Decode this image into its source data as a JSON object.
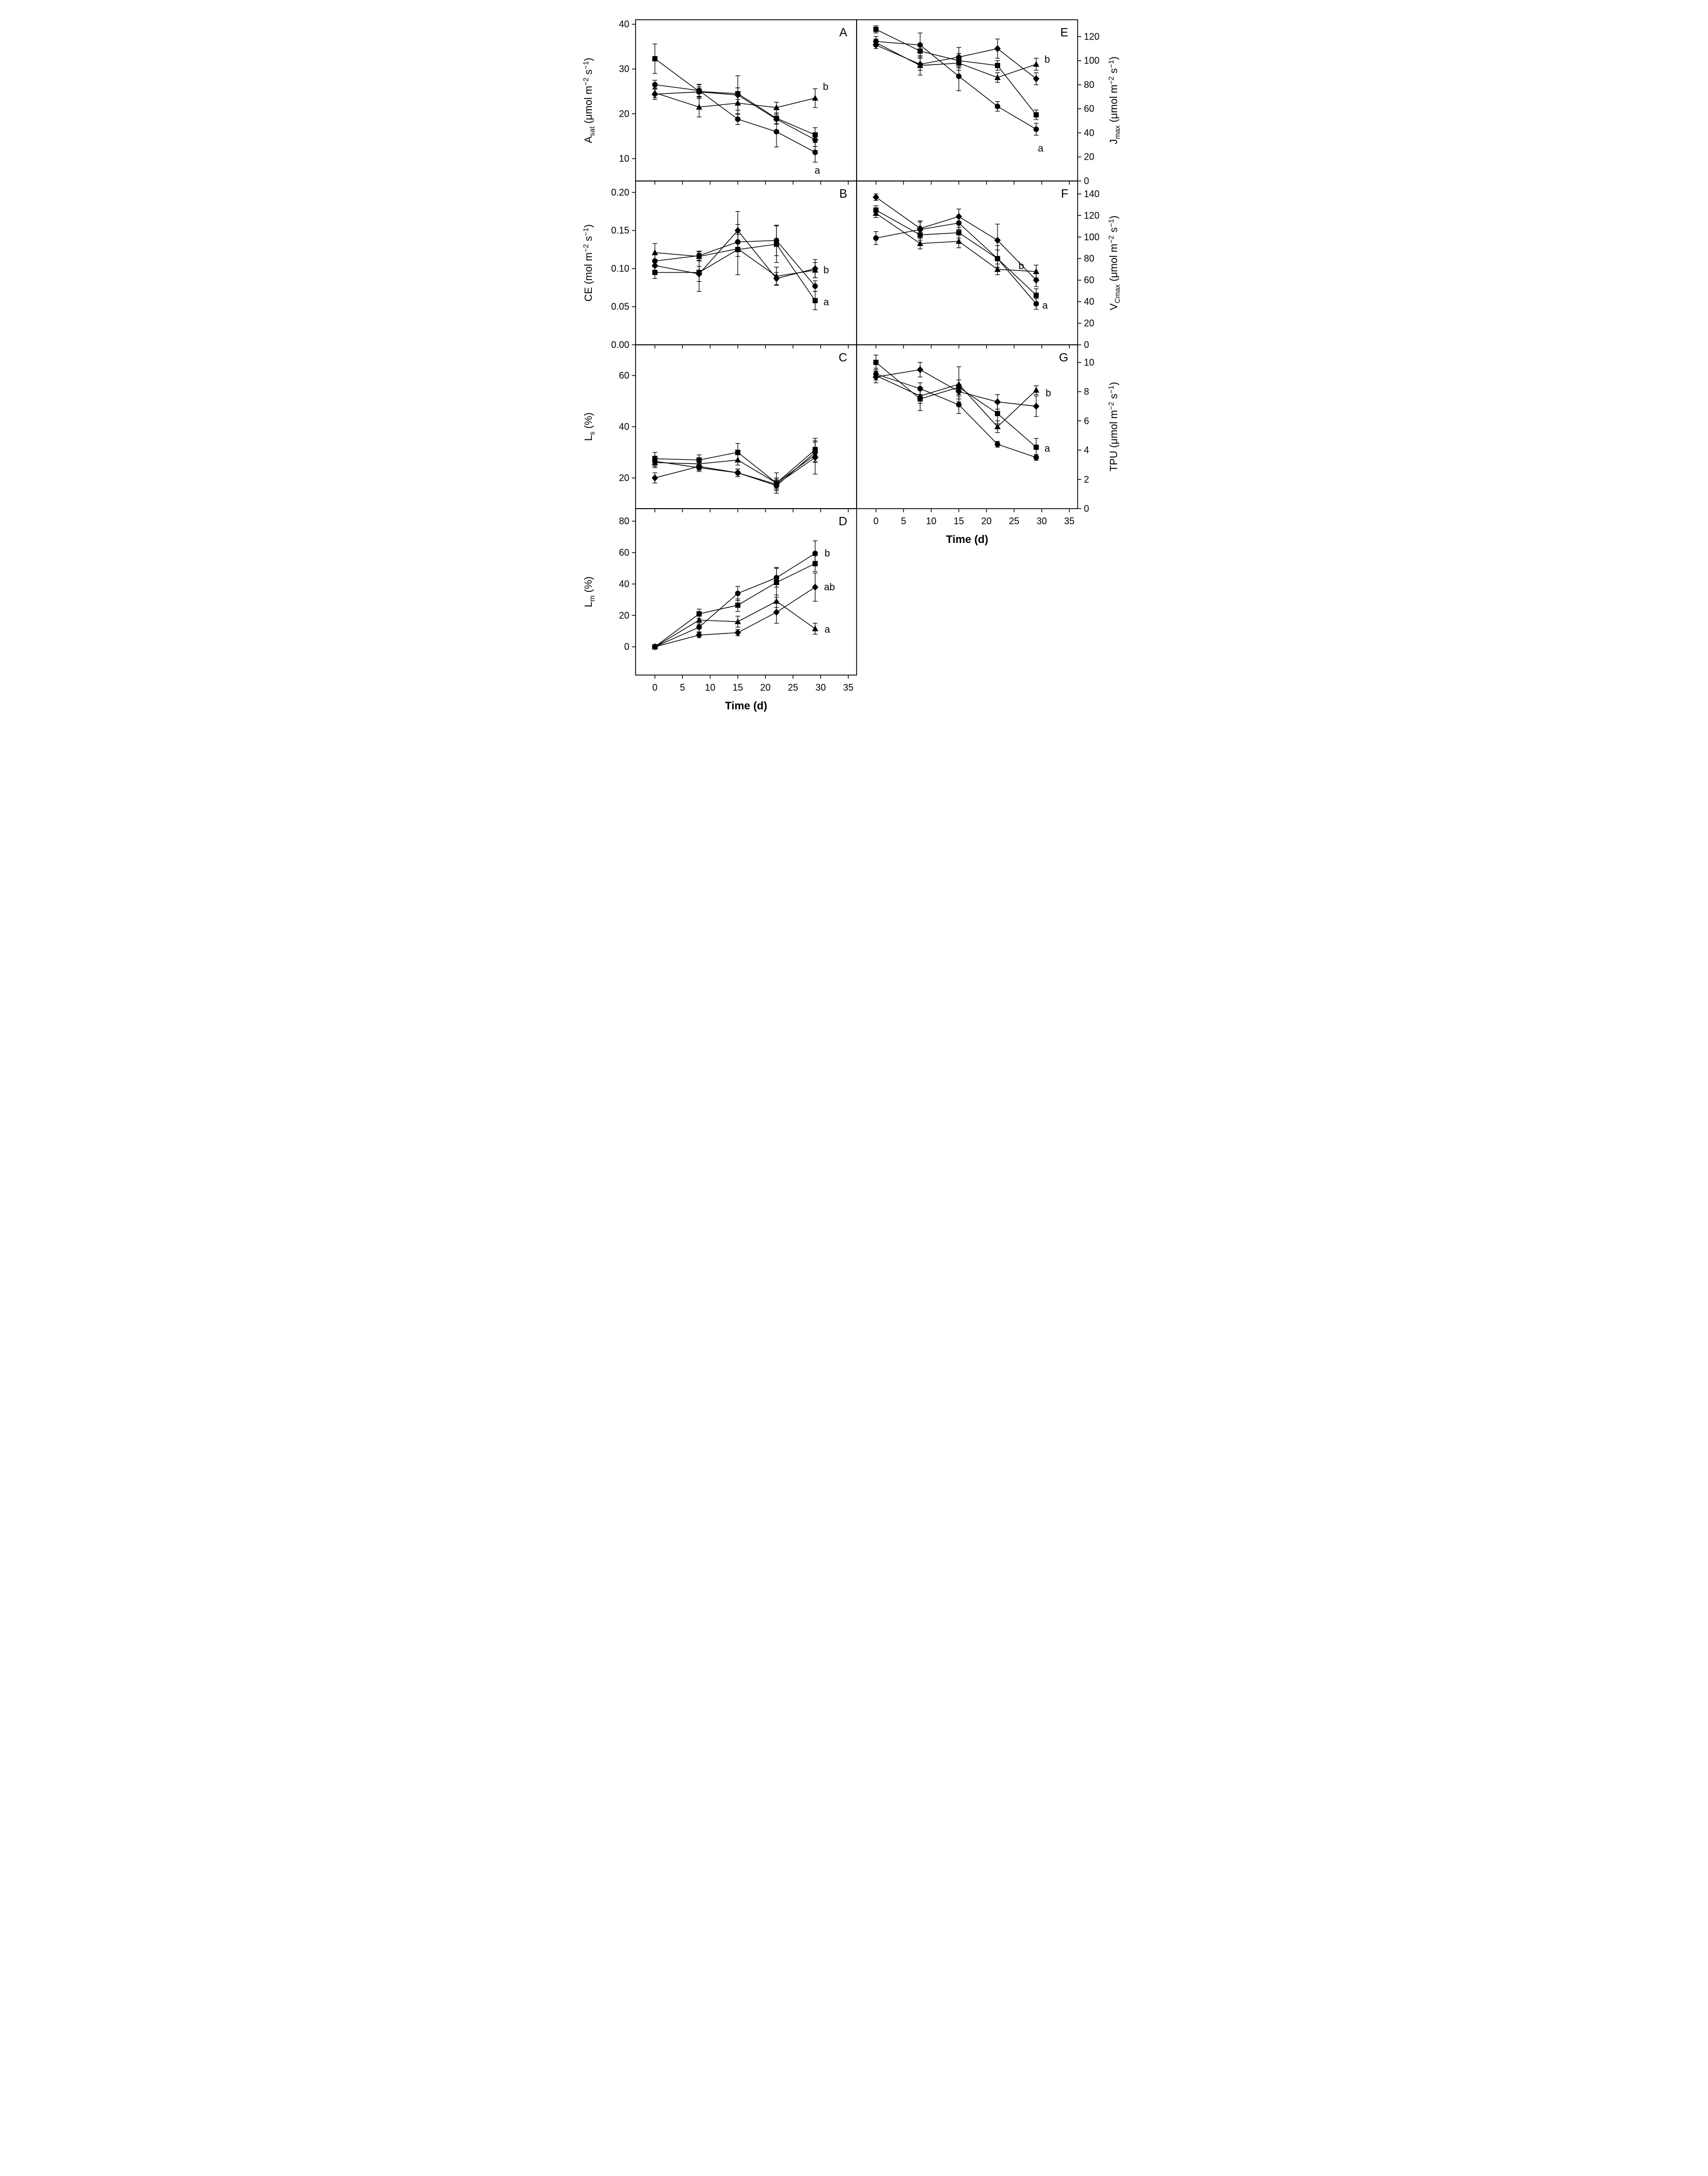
{
  "figure": {
    "xlabel": "Time (d)",
    "xlim": [
      -3.5,
      36.5
    ],
    "x_values": [
      0,
      8,
      15,
      22,
      29
    ],
    "x_ticks": [
      0,
      5,
      10,
      15,
      20,
      25,
      30,
      35
    ],
    "x_tick_labels": [
      "0",
      "5",
      "10",
      "15",
      "20",
      "25",
      "30",
      "35"
    ],
    "marker_color": "#000000",
    "axis_color": "#000000",
    "background": "#ffffff"
  },
  "chart_data": [
    {
      "panel": "A",
      "type": "line",
      "ylabel": [
        {
          "t": "A"
        },
        {
          "t": "sat",
          "v": "sub"
        },
        {
          "t": " (μmol m"
        },
        {
          "t": "−2",
          "v": "sup"
        },
        {
          "t": " s"
        },
        {
          "t": "−1",
          "v": "sup"
        },
        {
          "t": ")"
        }
      ],
      "ylim": [
        5,
        41
      ],
      "yticks": [
        10,
        20,
        30,
        40
      ],
      "ytick_labels": [
        "10",
        "20",
        "30",
        "40"
      ],
      "series": [
        {
          "marker": "square",
          "values": [
            32.3,
            25.0,
            24.5,
            19.0,
            15.3
          ],
          "errors": [
            3.3,
            1.6,
            1.3,
            1.2,
            1.6
          ]
        },
        {
          "marker": "circle",
          "values": [
            26.5,
            25.2,
            18.8,
            16.0,
            11.4
          ],
          "errors": [
            1.0,
            1.3,
            1.2,
            3.4,
            2.2
          ]
        },
        {
          "marker": "triangle",
          "values": [
            24.7,
            21.5,
            22.4,
            21.4,
            23.5
          ],
          "errors": [
            1.1,
            2.2,
            1.6,
            1.2,
            2.1
          ]
        },
        {
          "marker": "diamond",
          "values": [
            24.4,
            24.9,
            24.2,
            18.8,
            14.2
          ],
          "errors": [
            1.2,
            1.1,
            4.3,
            1.1,
            1.5
          ]
        }
      ],
      "annotations": [
        {
          "text": "b",
          "x": 30.9,
          "y": 26.0
        },
        {
          "text": "a",
          "x": 29.4,
          "y": 7.3
        }
      ]
    },
    {
      "panel": "B",
      "type": "line",
      "ylabel": [
        {
          "t": "CE (mol m"
        },
        {
          "t": "−2",
          "v": "sup"
        },
        {
          "t": " s"
        },
        {
          "t": "−1",
          "v": "sup"
        },
        {
          "t": ")"
        }
      ],
      "ylim": [
        0,
        0.215
      ],
      "yticks": [
        0,
        0.05,
        0.1,
        0.15,
        0.2
      ],
      "ytick_labels": [
        "0.00",
        "0.05",
        "0.10",
        "0.15",
        "0.20"
      ],
      "series": [
        {
          "marker": "square",
          "values": [
            0.095,
            0.095,
            0.125,
            0.132,
            0.058
          ],
          "errors": [
            0.008,
            0.025,
            0.033,
            0.024,
            0.012
          ]
        },
        {
          "marker": "circle",
          "values": [
            0.11,
            0.117,
            0.135,
            0.137,
            0.077
          ],
          "errors": [
            0.008,
            0.006,
            0.01,
            0.02,
            0.007
          ]
        },
        {
          "marker": "triangle",
          "values": [
            0.121,
            0.116,
            0.126,
            0.09,
            0.098
          ],
          "errors": [
            0.012,
            0.006,
            0.01,
            0.012,
            0.01
          ]
        },
        {
          "marker": "diamond",
          "values": [
            0.104,
            0.093,
            0.15,
            0.087,
            0.1
          ],
          "errors": [
            0.008,
            0.01,
            0.025,
            0.008,
            0.012
          ]
        }
      ],
      "annotations": [
        {
          "text": "b",
          "x": 31.0,
          "y": 0.098
        },
        {
          "text": "a",
          "x": 31.0,
          "y": 0.056
        }
      ]
    },
    {
      "panel": "C",
      "type": "line",
      "ylabel": [
        {
          "t": "L"
        },
        {
          "t": "s",
          "v": "sub"
        },
        {
          "t": " (%)"
        }
      ],
      "ylim": [
        8,
        72
      ],
      "yticks": [
        20,
        40,
        60
      ],
      "ytick_labels": [
        "20",
        "40",
        "60"
      ],
      "series": [
        {
          "marker": "square",
          "values": [
            27.5,
            27.0,
            30.0,
            18.0,
            31.0
          ],
          "errors": [
            2.5,
            2.0,
            3.5,
            2.0,
            4.5
          ]
        },
        {
          "marker": "circle",
          "values": [
            26.5,
            24.0,
            22.0,
            17.0,
            30.0
          ],
          "errors": [
            2.0,
            1.5,
            1.5,
            2.0,
            4.0
          ]
        },
        {
          "marker": "triangle",
          "values": [
            26.0,
            25.5,
            27.0,
            18.0,
            29.0
          ],
          "errors": [
            2.0,
            1.5,
            2.0,
            4.0,
            3.0
          ]
        },
        {
          "marker": "diamond",
          "values": [
            20.0,
            24.5,
            22.0,
            17.5,
            28.0
          ],
          "errors": [
            2.0,
            1.5,
            1.5,
            2.0,
            6.5
          ]
        }
      ],
      "annotations": []
    },
    {
      "panel": "D",
      "type": "line",
      "ylabel": [
        {
          "t": "L"
        },
        {
          "t": "m",
          "v": "sub"
        },
        {
          "t": " (%)"
        }
      ],
      "ylim": [
        -18,
        88
      ],
      "yticks": [
        0,
        20,
        40,
        60,
        80
      ],
      "ytick_labels": [
        "0",
        "20",
        "40",
        "60",
        "80"
      ],
      "series": [
        {
          "marker": "square",
          "values": [
            0,
            21.0,
            26.5,
            41.0,
            53.0
          ],
          "errors": [
            0.5,
            3.0,
            4.0,
            9.5,
            5.0
          ]
        },
        {
          "marker": "circle",
          "values": [
            0,
            12.5,
            34.0,
            44.0,
            59.5
          ],
          "errors": [
            0.5,
            3.0,
            4.5,
            6.0,
            8.0
          ]
        },
        {
          "marker": "triangle",
          "values": [
            0,
            17.0,
            16.0,
            29.0,
            11.5
          ],
          "errors": [
            0.5,
            2.5,
            3.5,
            4.0,
            3.5
          ]
        },
        {
          "marker": "diamond",
          "values": [
            0,
            7.5,
            9.0,
            22.0,
            38.0
          ],
          "errors": [
            0.5,
            1.5,
            2.0,
            7.0,
            9.0
          ]
        }
      ],
      "annotations": [
        {
          "text": "b",
          "x": 31.2,
          "y": 59.5
        },
        {
          "text": "ab",
          "x": 31.6,
          "y": 38.0
        },
        {
          "text": "a",
          "x": 31.2,
          "y": 11.0
        }
      ]
    },
    {
      "panel": "E",
      "type": "line",
      "ylabel": [
        {
          "t": "J"
        },
        {
          "t": "max",
          "v": "sub"
        },
        {
          "t": " (μmol m"
        },
        {
          "t": "−2",
          "v": "sup"
        },
        {
          "t": " s"
        },
        {
          "t": "−1",
          "v": "sup"
        },
        {
          "t": ")"
        }
      ],
      "ylim": [
        0,
        134
      ],
      "yticks": [
        0,
        20,
        40,
        60,
        80,
        100,
        120
      ],
      "ytick_labels": [
        "0",
        "20",
        "40",
        "60",
        "80",
        "100",
        "120"
      ],
      "series": [
        {
          "marker": "square",
          "values": [
            126,
            108,
            100,
            96,
            55
          ],
          "errors": [
            3,
            4,
            6,
            4,
            4
          ]
        },
        {
          "marker": "circle",
          "values": [
            116,
            113,
            87,
            62,
            43
          ],
          "errors": [
            4,
            10,
            12,
            4,
            5
          ]
        },
        {
          "marker": "triangle",
          "values": [
            115,
            96,
            98,
            86,
            97
          ],
          "errors": [
            3,
            8,
            6,
            4,
            5
          ]
        },
        {
          "marker": "diamond",
          "values": [
            113,
            97,
            103,
            110,
            85
          ],
          "errors": [
            3,
            5,
            8,
            8,
            5
          ]
        }
      ],
      "annotations": [
        {
          "text": "b",
          "x": 31.0,
          "y": 101.0
        },
        {
          "text": "a",
          "x": 29.8,
          "y": 27.0
        }
      ]
    },
    {
      "panel": "F",
      "type": "line",
      "ylabel": [
        {
          "t": "V"
        },
        {
          "t": "Cmax",
          "v": "sub"
        },
        {
          "t": " (μmol m"
        },
        {
          "t": "−2",
          "v": "sup"
        },
        {
          "t": " s"
        },
        {
          "t": "−1",
          "v": "sup"
        },
        {
          "t": ")"
        }
      ],
      "ylim": [
        0,
        152
      ],
      "yticks": [
        0,
        20,
        40,
        60,
        80,
        100,
        120,
        140
      ],
      "ytick_labels": [
        "0",
        "20",
        "40",
        "60",
        "80",
        "100",
        "120",
        "140"
      ],
      "series": [
        {
          "marker": "square",
          "values": [
            125,
            102,
            104,
            80,
            46
          ],
          "errors": [
            4,
            5,
            5,
            8,
            6
          ]
        },
        {
          "marker": "circle",
          "values": [
            99,
            107,
            113,
            80,
            38
          ],
          "errors": [
            6,
            8,
            6,
            12,
            5
          ]
        },
        {
          "marker": "triangle",
          "values": [
            122,
            94,
            96,
            70,
            68
          ],
          "errors": [
            4,
            5,
            6,
            5,
            6
          ]
        },
        {
          "marker": "diamond",
          "values": [
            137,
            108,
            119,
            97,
            60
          ],
          "errors": [
            3,
            6,
            7,
            15,
            6
          ]
        }
      ],
      "annotations": [
        {
          "text": "b",
          "x": 26.3,
          "y": 73.0
        },
        {
          "text": "a",
          "x": 30.6,
          "y": 36.5
        }
      ]
    },
    {
      "panel": "G",
      "type": "line",
      "ylabel": [
        {
          "t": "TPU (μmol m"
        },
        {
          "t": "−2",
          "v": "sup"
        },
        {
          "t": " s"
        },
        {
          "t": "−1",
          "v": "sup"
        },
        {
          "t": ")"
        }
      ],
      "ylim": [
        0,
        11.2
      ],
      "yticks": [
        0,
        2,
        4,
        6,
        8,
        10
      ],
      "ytick_labels": [
        "0",
        "2",
        "4",
        "6",
        "8",
        "10"
      ],
      "series": [
        {
          "marker": "square",
          "values": [
            10.0,
            7.5,
            8.3,
            6.5,
            4.2
          ],
          "errors": [
            0.5,
            0.8,
            0.5,
            0.7,
            0.6
          ]
        },
        {
          "marker": "circle",
          "values": [
            9.2,
            8.2,
            7.1,
            4.4,
            3.5
          ],
          "errors": [
            0.4,
            0.4,
            0.6,
            0.2,
            0.2
          ]
        },
        {
          "marker": "triangle",
          "values": [
            9.1,
            7.7,
            8.5,
            5.6,
            8.1
          ],
          "errors": [
            0.3,
            0.5,
            1.2,
            0.4,
            0.3
          ]
        },
        {
          "marker": "diamond",
          "values": [
            9.0,
            9.5,
            8.0,
            7.3,
            7.0
          ],
          "errors": [
            0.4,
            0.5,
            0.5,
            0.5,
            0.7
          ]
        }
      ],
      "annotations": [
        {
          "text": "b",
          "x": 31.2,
          "y": 7.9
        },
        {
          "text": "a",
          "x": 31.0,
          "y": 4.1
        }
      ]
    }
  ]
}
